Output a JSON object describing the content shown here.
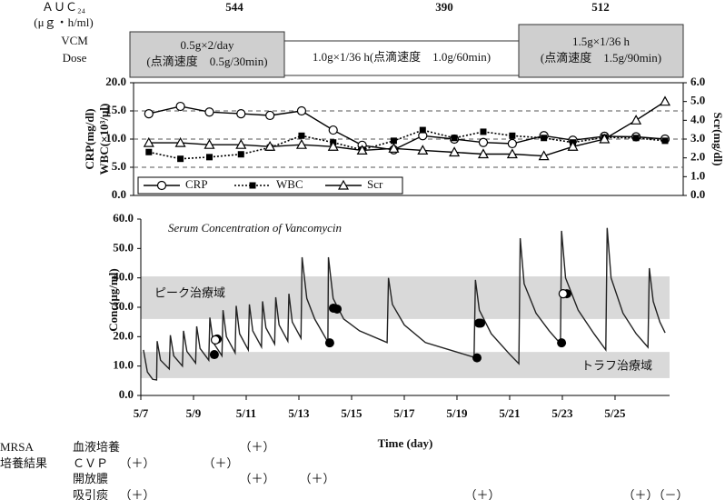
{
  "auc": {
    "label": [
      "ＡＵＣ₂₄",
      "(μｇ・h/ml)"
    ],
    "values": [
      544,
      390,
      512
    ]
  },
  "dose": {
    "label": [
      "VCM",
      "Dose"
    ],
    "regimens": [
      [
        "0.5g×2/day",
        "(点滴速度　0.5g/30min)"
      ],
      [
        "1.0g×1/36 h(点滴速度　1.0g/60min)"
      ],
      [
        "1.5g×1/36 h",
        "(点滴速度　1.5g/90min)"
      ]
    ]
  },
  "chart_data": [
    {
      "type": "line",
      "ylabel": [
        "CRP(mg/dl)",
        "WBC(×10³/μl)"
      ],
      "y2label": "Scr(mg/dl)",
      "xlim": [
        6.72,
        27.59
      ],
      "ylim": [
        0,
        20
      ],
      "yticks": [
        {
          "value": 0,
          "label": "0.0"
        },
        {
          "value": 5,
          "label": "5.0"
        },
        {
          "value": 10,
          "label": "10.0"
        },
        {
          "value": 15,
          "label": "15.0"
        },
        {
          "value": 20,
          "label": "20.0"
        }
      ],
      "y2lim": [
        0,
        6
      ],
      "y2ticks": [
        {
          "value": 0,
          "label": "0.0"
        },
        {
          "value": 1,
          "label": "1.0"
        },
        {
          "value": 2,
          "label": "2.0"
        },
        {
          "value": 3,
          "label": "3.0"
        },
        {
          "value": 4,
          "label": "4.0"
        },
        {
          "value": 5,
          "label": "5.0"
        },
        {
          "value": 6,
          "label": "6.0"
        }
      ],
      "grid_lines": [
        5,
        10,
        15
      ],
      "legend": "lower left",
      "x": [
        7.3,
        8.5,
        9.6,
        10.8,
        11.9,
        13.1,
        14.3,
        15.4,
        16.6,
        17.7,
        18.9,
        20.0,
        21.1,
        22.3,
        23.4,
        24.6,
        25.8,
        26.9
      ],
      "series": [
        {
          "name": "CRP",
          "color": "#000000",
          "marker": "open-circle",
          "dash": "solid",
          "values": [
            14.5,
            15.8,
            14.8,
            14.5,
            14.2,
            15.0,
            11.6,
            8.9,
            8.1,
            10.6,
            10.0,
            9.4,
            9.2,
            10.6,
            9.8,
            10.5,
            10.4,
            10.0
          ]
        },
        {
          "name": "WBC",
          "color": "#000000",
          "marker": "filled-square",
          "dash": "dotted",
          "values": [
            7.7,
            6.5,
            6.8,
            7.3,
            8.5,
            10.6,
            9.4,
            8.1,
            9.7,
            11.6,
            10.2,
            11.3,
            10.6,
            10.2,
            9.4,
            10.3,
            10.2,
            9.7
          ]
        },
        {
          "name": "Scr",
          "color": "#000000",
          "marker": "open-triangle",
          "dash": "solid",
          "axis": "y2",
          "values": [
            2.8,
            2.8,
            2.7,
            2.7,
            2.6,
            2.7,
            2.6,
            2.4,
            2.5,
            2.4,
            2.3,
            2.2,
            2.2,
            2.1,
            2.6,
            3.0,
            4.0,
            5.0
          ]
        }
      ]
    },
    {
      "type": "line",
      "title": "Serum Concentration of Vancomycin",
      "ylabel": "Conc(μg/ml)",
      "xlabel": "Time (day)",
      "xlim": [
        7,
        27.07
      ],
      "xticks": [
        {
          "value": 7,
          "label": "5/7"
        },
        {
          "value": 9,
          "label": "5/9"
        },
        {
          "value": 11,
          "label": "5/11"
        },
        {
          "value": 13,
          "label": "5/13"
        },
        {
          "value": 15,
          "label": "5/15"
        },
        {
          "value": 17,
          "label": "5/17"
        },
        {
          "value": 19,
          "label": "5/19"
        },
        {
          "value": 21,
          "label": "5/21"
        },
        {
          "value": 23,
          "label": "5/23"
        },
        {
          "value": 25,
          "label": "5/25"
        }
      ],
      "ylim": [
        0,
        60
      ],
      "yticks": [
        {
          "value": 0,
          "label": "0.0"
        },
        {
          "value": 10,
          "label": "10.0"
        },
        {
          "value": 20,
          "label": "20.0"
        },
        {
          "value": 30,
          "label": "30.0"
        },
        {
          "value": 40,
          "label": "40.0"
        },
        {
          "value": 50,
          "label": "50.0"
        },
        {
          "value": 60,
          "label": "60.0"
        }
      ],
      "bands": [
        {
          "label": "ピーク治療域",
          "range": [
            26,
            40.5
          ]
        },
        {
          "label": "トラフ治療域",
          "range": [
            5.9,
            14.8
          ]
        }
      ],
      "series": [
        {
          "color": "#222222",
          "marker": "none",
          "dash": "solid",
          "x": [
            7.1,
            7.25,
            7.45,
            7.6,
            7.62,
            7.75,
            8.08,
            8.12,
            8.25,
            8.58,
            8.62,
            8.75,
            9.08,
            9.12,
            9.25,
            9.58,
            9.62,
            9.75,
            10.08,
            10.12,
            10.25,
            10.58,
            10.62,
            10.75,
            11.08,
            11.12,
            11.25,
            11.58,
            11.62,
            11.75,
            12.08,
            12.12,
            12.25,
            12.58,
            12.62,
            12.75,
            13.08,
            13.12,
            13.3,
            13.6,
            14.1,
            14.12,
            14.3,
            14.7,
            15.3,
            16.35,
            16.4,
            16.55,
            17.0,
            17.8,
            19.65,
            19.7,
            19.85,
            20.3,
            21.0,
            21.35,
            21.4,
            21.55,
            22.0,
            22.5,
            22.93,
            22.97,
            23.12,
            23.6,
            24.2,
            24.65,
            24.7,
            24.85,
            25.3,
            25.8,
            26.25,
            26.3,
            26.45,
            26.7,
            26.9
          ],
          "values": [
            15.5,
            8,
            5.5,
            5.3,
            18.5,
            12,
            9.0,
            20.5,
            13.5,
            10.0,
            22,
            15,
            11,
            23.5,
            16,
            12,
            26.5,
            18,
            13.5,
            29,
            20,
            14.5,
            30.5,
            21,
            15.5,
            31,
            22,
            16.5,
            32,
            23,
            17.5,
            33.4,
            24,
            18.5,
            34.6,
            25,
            19.5,
            47,
            33,
            26,
            18.2,
            47,
            33,
            26,
            22,
            18,
            40,
            31,
            24,
            18,
            13,
            39.3,
            29,
            21,
            14,
            10.8,
            53.5,
            38,
            28,
            22,
            17.6,
            56,
            40,
            29,
            21,
            15.5,
            57,
            40,
            28,
            21,
            16.4,
            43.3,
            32,
            25,
            21.3
          ]
        },
        {
          "color": "#000000",
          "marker": "filled-circle",
          "dash": "none",
          "x": [
            9.79,
            9.9,
            14.17,
            14.31,
            14.45,
            19.76,
            19.83,
            19.9,
            22.97,
            23.17
          ],
          "values": [
            13.9,
            19.2,
            17.9,
            29.7,
            29.4,
            12.8,
            24.6,
            24.6,
            17.9,
            34.6
          ]
        },
        {
          "color": "#000000",
          "marker": "open-circle",
          "dash": "none",
          "x": [
            9.83,
            23.03
          ],
          "values": [
            18.9,
            34.6
          ]
        }
      ]
    }
  ],
  "culture": {
    "title": [
      "MRSA",
      "培養結果"
    ],
    "rows": [
      {
        "name": "血液培養",
        "results": [
          "（＋）"
        ]
      },
      {
        "name": "ＣＶＰ",
        "results": [
          "（＋）",
          "（＋）"
        ]
      },
      {
        "name": "開放膿",
        "results": [
          "（＋）",
          "（＋）"
        ]
      },
      {
        "name": "吸引痰",
        "results": [
          "（＋）",
          "（＋）",
          "（＋）",
          "（－）"
        ]
      }
    ]
  }
}
